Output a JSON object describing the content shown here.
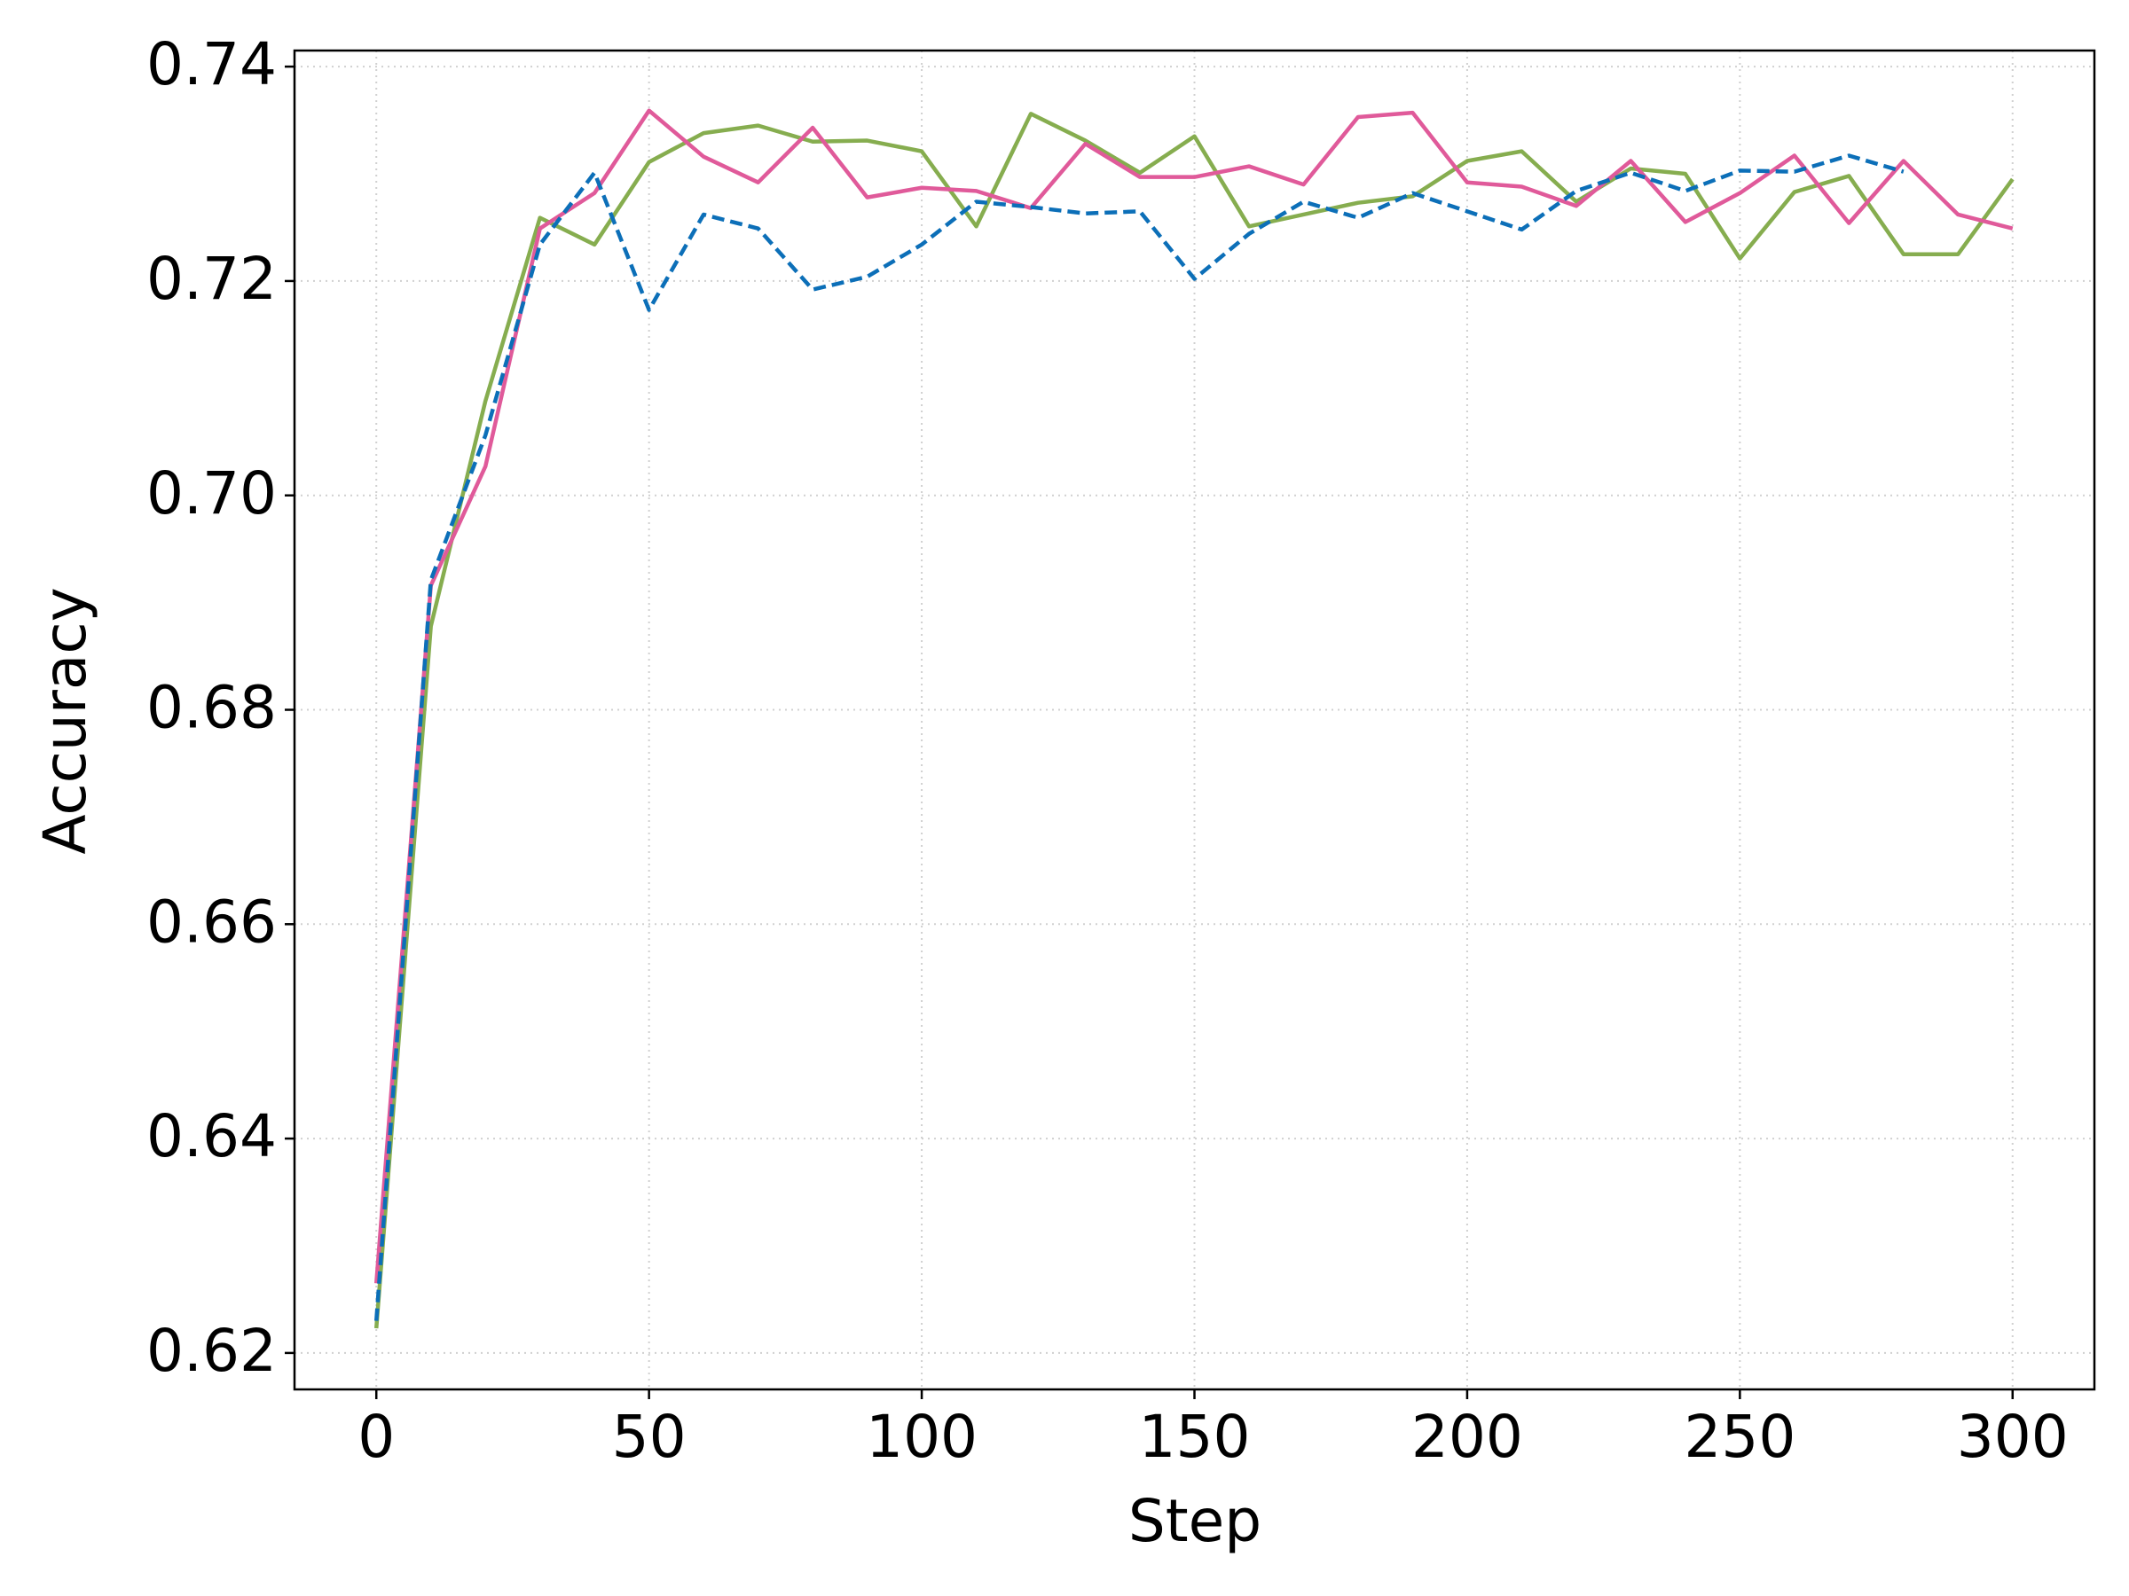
{
  "chart_data": {
    "type": "line",
    "xlabel": "Step",
    "ylabel": "Accuracy",
    "x": [
      0,
      10,
      20,
      30,
      40,
      50,
      60,
      70,
      80,
      90,
      100,
      110,
      120,
      130,
      140,
      150,
      160,
      170,
      180,
      190,
      200,
      210,
      220,
      230,
      240,
      250,
      260,
      270,
      280,
      290,
      300
    ],
    "series": [
      {
        "color": "#86ad4f",
        "linestyle": "solid",
        "values": [
          0.6223,
          0.6878,
          0.7088,
          0.7259,
          0.7234,
          0.7311,
          0.7338,
          0.7345,
          0.733,
          0.7331,
          0.7321,
          0.7251,
          0.7356,
          0.7331,
          0.7301,
          0.7335,
          0.7251,
          0.7262,
          0.7273,
          0.7279,
          0.7312,
          0.7321,
          0.7274,
          0.7305,
          0.73,
          0.7221,
          0.7283,
          0.7298,
          0.7225,
          0.7225,
          0.7295
        ]
      },
      {
        "color": "#e05a9a",
        "linestyle": "solid",
        "values": [
          0.6265,
          0.6916,
          0.7027,
          0.7249,
          0.7282,
          0.7359,
          0.7316,
          0.7292,
          0.7343,
          0.7278,
          0.7287,
          0.7284,
          0.7268,
          0.7328,
          0.7297,
          0.7297,
          0.7307,
          0.729,
          0.7353,
          0.7357,
          0.7292,
          0.7288,
          0.727,
          0.7312,
          0.7255,
          0.7282,
          0.7317,
          0.7254,
          0.7312,
          0.7262,
          0.7249
        ]
      },
      {
        "color": "#0c6fb8",
        "linestyle": "dashed",
        "values": [
          0.623,
          0.6921,
          0.7056,
          0.7234,
          0.7301,
          0.7173,
          0.7262,
          0.7249,
          0.7192,
          0.7204,
          0.7234,
          0.7274,
          0.7269,
          0.7263,
          0.7265,
          0.7202,
          0.7244,
          0.7274,
          0.7259,
          0.7282,
          0.7265,
          0.7248,
          0.7284,
          0.7301,
          0.7284,
          0.7303,
          0.7302,
          0.7317,
          0.7302,
          null,
          null
        ]
      }
    ],
    "xlim": [
      -15,
      315
    ],
    "ylim": [
      0.6166,
      0.7415
    ],
    "xticks": [
      0,
      50,
      100,
      150,
      200,
      250,
      300
    ],
    "yticks": [
      0.62,
      0.64,
      0.66,
      0.68,
      {
        "value": 0.7,
        "label": "0.70"
      },
      0.72,
      0.74
    ],
    "grid": true
  }
}
